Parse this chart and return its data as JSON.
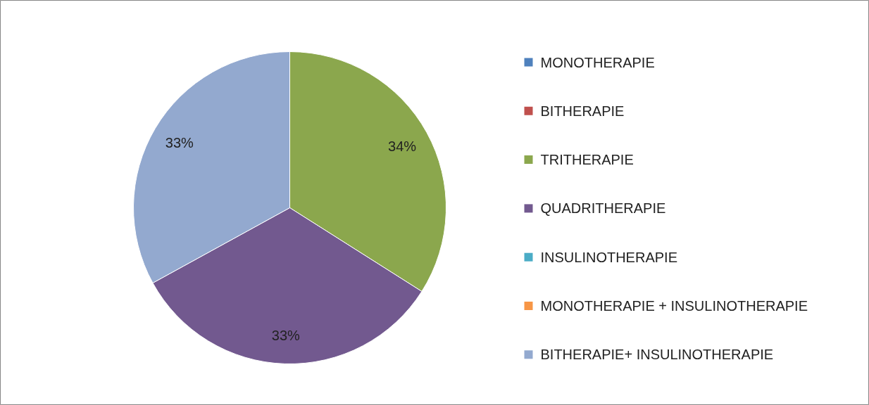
{
  "chart_data": {
    "type": "pie",
    "categories": [
      "MONOTHERAPIE",
      "BITHERAPIE",
      "TRITHERAPIE",
      "QUADRITHERAPIE",
      "INSULINOTHERAPIE",
      "MONOTHERAPIE + INSULINOTHERAPIE",
      "BITHERAPIE+ INSULINOTHERAPIE"
    ],
    "values": [
      0,
      0,
      34,
      33,
      0,
      0,
      33
    ],
    "value_labels": [
      null,
      null,
      "34%",
      "33%",
      null,
      null,
      "33%"
    ],
    "colors": [
      "#4f81bd",
      "#c0504d",
      "#8ba74d",
      "#72598f",
      "#4bacc6",
      "#f79646",
      "#93a9cf"
    ],
    "legend": "right"
  }
}
